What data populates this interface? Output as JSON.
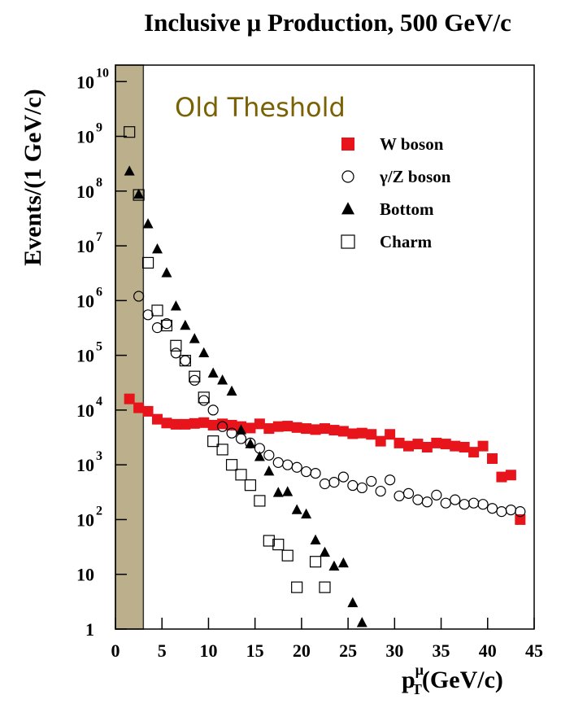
{
  "chart_data": {
    "type": "scatter",
    "title": "Inclusive μ Production, 500 GeV/c",
    "ylabel": "Events/(1 GeV/c)",
    "xlabel": {
      "base": "p",
      "sub": "T",
      "sup": "μ",
      "unit": "(GeV/c)"
    },
    "annotation": "Old Theshold",
    "threshold_band": [
      0,
      3
    ],
    "band_color": "#bcb08c",
    "annotation_color": "#7a6204",
    "xlim": [
      0,
      45
    ],
    "xticks": [
      0,
      5,
      10,
      15,
      20,
      25,
      30,
      35,
      40,
      45
    ],
    "ylim": [
      1,
      20000000000
    ],
    "log_y": true,
    "yticks": [
      1,
      10,
      {
        "value": 100,
        "label": "10",
        "sup": "2"
      },
      {
        "value": 1000,
        "label": "10",
        "sup": "3"
      },
      {
        "value": 10000,
        "label": "10",
        "sup": "4"
      },
      {
        "value": 100000,
        "label": "10",
        "sup": "5"
      },
      {
        "value": 1000000,
        "label": "10",
        "sup": "6"
      },
      {
        "value": 10000000,
        "label": "10",
        "sup": "7"
      },
      {
        "value": 100000000,
        "label": "10",
        "sup": "8"
      },
      {
        "value": 1000000000,
        "label": "10",
        "sup": "9"
      },
      {
        "value": 10000000000,
        "label": "10",
        "sup": "10"
      }
    ],
    "legend": "upper right",
    "series": [
      {
        "name": "W boson",
        "color": "#e8141c",
        "marker": "square-filled",
        "x": [
          1.5,
          2.5,
          3.5,
          4.5,
          5.5,
          6.5,
          7.5,
          8.5,
          9.5,
          10.5,
          11.5,
          12.5,
          13.5,
          14.5,
          15.5,
          16.5,
          17.5,
          18.5,
          19.5,
          20.5,
          21.5,
          22.5,
          23.5,
          24.5,
          25.5,
          26.5,
          27.5,
          28.5,
          29.5,
          30.5,
          31.5,
          32.5,
          33.5,
          34.5,
          35.5,
          36.5,
          37.5,
          38.5,
          39.5,
          40.5,
          41.5,
          42.5,
          43.5
        ],
        "values": [
          16000,
          11000,
          9500,
          6800,
          5800,
          5500,
          5500,
          5700,
          5900,
          5300,
          5600,
          5300,
          5000,
          4700,
          5600,
          4600,
          5000,
          5100,
          4800,
          4600,
          4400,
          4600,
          4300,
          4100,
          3700,
          3800,
          3600,
          2700,
          3600,
          2500,
          2200,
          2400,
          2100,
          2500,
          2400,
          2200,
          2100,
          1700,
          2200,
          1300,
          600,
          650,
          100
        ]
      },
      {
        "name": "γ/Z boson",
        "color": "#000000",
        "marker": "circle-open",
        "x": [
          2.5,
          3.5,
          4.5,
          5.5,
          6.5,
          7.5,
          8.5,
          9.5,
          10.5,
          11.5,
          12.5,
          13.5,
          14.5,
          15.5,
          16.5,
          17.5,
          18.5,
          19.5,
          20.5,
          21.5,
          22.5,
          23.5,
          24.5,
          25.5,
          26.5,
          27.5,
          28.5,
          29.5,
          30.5,
          31.5,
          32.5,
          33.5,
          34.5,
          35.5,
          36.5,
          37.5,
          38.5,
          39.5,
          40.5,
          41.5,
          42.5,
          43.5
        ],
        "values": [
          1200000,
          550000,
          320000,
          380000,
          110000,
          80000,
          35000,
          15000,
          10000,
          5000,
          3800,
          3000,
          2500,
          2000,
          1500,
          1100,
          1000,
          900,
          750,
          700,
          450,
          480,
          600,
          420,
          380,
          500,
          330,
          530,
          270,
          300,
          230,
          210,
          280,
          200,
          230,
          190,
          200,
          190,
          160,
          140,
          150,
          140
        ]
      },
      {
        "name": "Bottom",
        "color": "#000000",
        "marker": "triangle-filled",
        "x": [
          1.5,
          2.5,
          3.5,
          4.5,
          5.5,
          6.5,
          7.5,
          8.5,
          9.5,
          10.5,
          11.5,
          12.5,
          13.5,
          14.5,
          15.5,
          16.5,
          17.5,
          18.5,
          19.5,
          20.5,
          21.5,
          22.5,
          23.5,
          24.5,
          25.5,
          26.5
        ],
        "values": [
          230000000,
          87000000,
          25000000,
          8700000,
          3200000,
          790000,
          350000,
          200000,
          110000,
          47000,
          35000,
          22000,
          4300,
          2400,
          1400,
          760,
          310,
          320,
          150,
          125,
          42,
          25,
          14,
          16,
          3,
          1.3
        ]
      },
      {
        "name": "Charm",
        "color": "#000000",
        "marker": "square-open",
        "x": [
          1.5,
          2.5,
          3.5,
          4.5,
          5.5,
          6.5,
          7.5,
          8.5,
          9.5,
          10.5,
          11.5,
          12.5,
          13.5,
          14.5,
          15.5,
          16.5,
          17.5,
          18.5,
          19.5,
          21.5,
          22.5
        ],
        "values": [
          1200000000,
          85000000,
          4900000,
          660000,
          350000,
          150000,
          80000,
          41000,
          17000,
          2700,
          1900,
          1000,
          660,
          425,
          220,
          41,
          35,
          22,
          5.8,
          17,
          5.8
        ]
      }
    ]
  }
}
